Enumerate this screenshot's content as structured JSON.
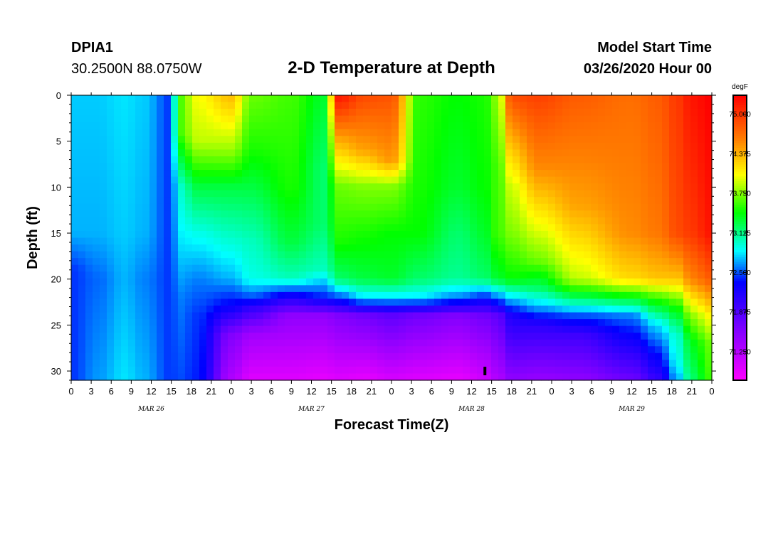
{
  "header": {
    "station_id": "DPIA1",
    "coords": "30.2500N 88.0750W",
    "title": "2-D Temperature at Depth",
    "start_label": "Model Start Time",
    "start_value": "03/26/2020 Hour 00"
  },
  "chart_data": {
    "type": "heatmap",
    "title": "2-D Temperature at Depth",
    "xlabel": "Forecast Time(Z)",
    "ylabel": "Depth (ft)",
    "x_range_hours": [
      0,
      96
    ],
    "y_range_ft": [
      0,
      31
    ],
    "x_tick_labels": [
      "0",
      "3",
      "6",
      "9",
      "12",
      "15",
      "18",
      "21",
      "0",
      "3",
      "6",
      "9",
      "12",
      "15",
      "18",
      "21",
      "0",
      "3",
      "6",
      "9",
      "12",
      "15",
      "18",
      "21",
      "0",
      "3",
      "6",
      "9",
      "12",
      "15",
      "18",
      "21",
      "0"
    ],
    "x_tick_hours": [
      0,
      3,
      6,
      9,
      12,
      15,
      18,
      21,
      24,
      27,
      30,
      33,
      36,
      39,
      42,
      45,
      48,
      51,
      54,
      57,
      60,
      63,
      66,
      69,
      72,
      75,
      78,
      81,
      84,
      87,
      90,
      93,
      96
    ],
    "date_labels": [
      {
        "text": "MAR 26",
        "hour": 12
      },
      {
        "text": "MAR 27",
        "hour": 36
      },
      {
        "text": "MAR 28",
        "hour": 60
      },
      {
        "text": "MAR 29",
        "hour": 84
      }
    ],
    "y_ticks": [
      0,
      5,
      10,
      15,
      20,
      25,
      30
    ],
    "colorbar": {
      "unit": "degF",
      "min": 70.8,
      "max": 75.3,
      "tick_values": [
        75.0,
        74.375,
        73.75,
        73.125,
        72.5,
        71.875,
        71.25
      ],
      "tick_labels": [
        "75.000",
        "74.375",
        "73.750",
        "73.125",
        "72.500",
        "71.875",
        "71.250"
      ],
      "stops": [
        {
          "value": 70.8,
          "color": "#ff00ff"
        },
        {
          "value": 71.6,
          "color": "#8000ff"
        },
        {
          "value": 72.35,
          "color": "#0000ff"
        },
        {
          "value": 72.85,
          "color": "#00ffff"
        },
        {
          "value": 73.45,
          "color": "#00ff00"
        },
        {
          "value": 74.05,
          "color": "#ffff00"
        },
        {
          "value": 74.6,
          "color": "#ff8000"
        },
        {
          "value": 75.3,
          "color": "#ff0000"
        }
      ]
    },
    "time_profiles": [
      {
        "hour": 0,
        "temps": [
          [
            0,
            72.75
          ],
          [
            15,
            72.7
          ],
          [
            19,
            72.45
          ],
          [
            31,
            72.45
          ]
        ]
      },
      {
        "hour": 4,
        "temps": [
          [
            0,
            72.75
          ],
          [
            15,
            72.7
          ],
          [
            20,
            72.55
          ],
          [
            31,
            72.65
          ]
        ]
      },
      {
        "hour": 8,
        "temps": [
          [
            0,
            72.8
          ],
          [
            15,
            72.75
          ],
          [
            20,
            72.7
          ],
          [
            31,
            72.8
          ]
        ]
      },
      {
        "hour": 11,
        "temps": [
          [
            0,
            72.75
          ],
          [
            15,
            72.7
          ],
          [
            20,
            72.6
          ],
          [
            31,
            72.7
          ]
        ]
      },
      {
        "hour": 15,
        "temps": [
          [
            0,
            72.45
          ],
          [
            15,
            72.45
          ],
          [
            20,
            72.45
          ],
          [
            31,
            72.45
          ]
        ]
      },
      {
        "hour": 16,
        "temps": [
          [
            0,
            73.6
          ],
          [
            4,
            73.6
          ],
          [
            10,
            72.95
          ],
          [
            16,
            72.8
          ],
          [
            22,
            72.6
          ],
          [
            31,
            72.5
          ]
        ]
      },
      {
        "hour": 19,
        "temps": [
          [
            0,
            74.05
          ],
          [
            5,
            73.9
          ],
          [
            10,
            73.3
          ],
          [
            15,
            72.9
          ],
          [
            20,
            72.6
          ],
          [
            24,
            72.45
          ],
          [
            31,
            72.4
          ]
        ]
      },
      {
        "hour": 24,
        "temps": [
          [
            0,
            74.35
          ],
          [
            6,
            73.8
          ],
          [
            10,
            73.3
          ],
          [
            15,
            73.0
          ],
          [
            20,
            72.7
          ],
          [
            23,
            72.3
          ],
          [
            26,
            71.6
          ],
          [
            31,
            71.3
          ]
        ]
      },
      {
        "hour": 27,
        "temps": [
          [
            0,
            73.7
          ],
          [
            6,
            73.5
          ],
          [
            10,
            73.3
          ],
          [
            16,
            73.0
          ],
          [
            20,
            72.9
          ],
          [
            22,
            72.5
          ],
          [
            23,
            72.1
          ],
          [
            26,
            71.4
          ],
          [
            31,
            71.0
          ]
        ]
      },
      {
        "hour": 33,
        "temps": [
          [
            0,
            73.6
          ],
          [
            10,
            73.5
          ],
          [
            16,
            73.3
          ],
          [
            20,
            73.0
          ],
          [
            22,
            72.2
          ],
          [
            24,
            71.5
          ],
          [
            31,
            71.0
          ]
        ]
      },
      {
        "hour": 38,
        "temps": [
          [
            0,
            73.35
          ],
          [
            8,
            73.2
          ],
          [
            14,
            73.2
          ],
          [
            19,
            73.0
          ],
          [
            22,
            72.4
          ],
          [
            24,
            71.5
          ],
          [
            31,
            70.95
          ]
        ]
      },
      {
        "hour": 40,
        "temps": [
          [
            0,
            75.2
          ],
          [
            5,
            74.4
          ],
          [
            10,
            73.7
          ],
          [
            16,
            73.5
          ],
          [
            20,
            73.2
          ],
          [
            22,
            72.5
          ],
          [
            24,
            71.6
          ],
          [
            31,
            71.0
          ]
        ]
      },
      {
        "hour": 44,
        "temps": [
          [
            0,
            74.9
          ],
          [
            6,
            74.45
          ],
          [
            10,
            73.75
          ],
          [
            15,
            73.5
          ],
          [
            20,
            73.3
          ],
          [
            22,
            72.8
          ],
          [
            24,
            71.7
          ],
          [
            31,
            70.95
          ]
        ]
      },
      {
        "hour": 48,
        "temps": [
          [
            0,
            74.85
          ],
          [
            7,
            74.5
          ],
          [
            10,
            73.75
          ],
          [
            15,
            73.45
          ],
          [
            20,
            73.35
          ],
          [
            22,
            72.8
          ],
          [
            24,
            71.8
          ],
          [
            31,
            71.05
          ]
        ]
      },
      {
        "hour": 52,
        "temps": [
          [
            0,
            73.55
          ],
          [
            10,
            73.5
          ],
          [
            15,
            73.45
          ],
          [
            20,
            73.2
          ],
          [
            22,
            72.8
          ],
          [
            24,
            71.7
          ],
          [
            31,
            71.0
          ]
        ]
      },
      {
        "hour": 58,
        "temps": [
          [
            0,
            73.45
          ],
          [
            10,
            73.35
          ],
          [
            15,
            73.2
          ],
          [
            20,
            73.1
          ],
          [
            22,
            72.6
          ],
          [
            24,
            71.6
          ],
          [
            31,
            70.95
          ]
        ]
      },
      {
        "hour": 62,
        "temps": [
          [
            0,
            73.5
          ],
          [
            10,
            73.45
          ],
          [
            15,
            73.35
          ],
          [
            20,
            73.2
          ],
          [
            22,
            72.4
          ],
          [
            24,
            71.7
          ],
          [
            31,
            71.1
          ]
        ]
      },
      {
        "hour": 64,
        "temps": [
          [
            0,
            73.8
          ],
          [
            8,
            73.6
          ],
          [
            15,
            73.6
          ],
          [
            20,
            73.35
          ],
          [
            22,
            72.6
          ],
          [
            24,
            71.8
          ],
          [
            31,
            71.3
          ]
        ]
      },
      {
        "hour": 66,
        "temps": [
          [
            0,
            74.9
          ],
          [
            6,
            74.3
          ],
          [
            10,
            73.95
          ],
          [
            15,
            73.75
          ],
          [
            20,
            73.45
          ],
          [
            22,
            72.8
          ],
          [
            24,
            72.2
          ],
          [
            31,
            71.5
          ]
        ]
      },
      {
        "hour": 70,
        "temps": [
          [
            0,
            74.95
          ],
          [
            8,
            74.55
          ],
          [
            12,
            74.2
          ],
          [
            18,
            73.7
          ],
          [
            21,
            73.2
          ],
          [
            23,
            72.7
          ],
          [
            25,
            72.1
          ],
          [
            31,
            71.45
          ]
        ]
      },
      {
        "hour": 76,
        "temps": [
          [
            0,
            74.8
          ],
          [
            12,
            74.45
          ],
          [
            20,
            73.9
          ],
          [
            22,
            73.25
          ],
          [
            24,
            72.5
          ],
          [
            26,
            72.0
          ],
          [
            31,
            71.5
          ]
        ]
      },
      {
        "hour": 84,
        "temps": [
          [
            0,
            74.7
          ],
          [
            15,
            74.55
          ],
          [
            20,
            74.2
          ],
          [
            22,
            73.4
          ],
          [
            24,
            72.6
          ],
          [
            27,
            72.2
          ],
          [
            31,
            71.7
          ]
        ]
      },
      {
        "hour": 88,
        "temps": [
          [
            0,
            74.8
          ],
          [
            15,
            74.65
          ],
          [
            20,
            74.3
          ],
          [
            22,
            73.6
          ],
          [
            25,
            72.8
          ],
          [
            28,
            72.4
          ],
          [
            31,
            72.05
          ]
        ]
      },
      {
        "hour": 91,
        "temps": [
          [
            0,
            75.0
          ],
          [
            15,
            74.9
          ],
          [
            20,
            74.3
          ],
          [
            23,
            73.5
          ],
          [
            26,
            73.0
          ],
          [
            29,
            72.9
          ],
          [
            31,
            72.7
          ]
        ]
      },
      {
        "hour": 93,
        "temps": [
          [
            0,
            75.2
          ],
          [
            15,
            75.0
          ],
          [
            20,
            74.6
          ],
          [
            24,
            73.8
          ],
          [
            27,
            73.4
          ],
          [
            31,
            73.2
          ]
        ]
      },
      {
        "hour": 96,
        "temps": [
          [
            0,
            75.3
          ],
          [
            15,
            75.2
          ],
          [
            20,
            74.8
          ],
          [
            24,
            74.1
          ],
          [
            27,
            73.7
          ],
          [
            31,
            73.6
          ]
        ]
      }
    ],
    "marker": {
      "hour": 62,
      "depth_ft": 30
    }
  }
}
